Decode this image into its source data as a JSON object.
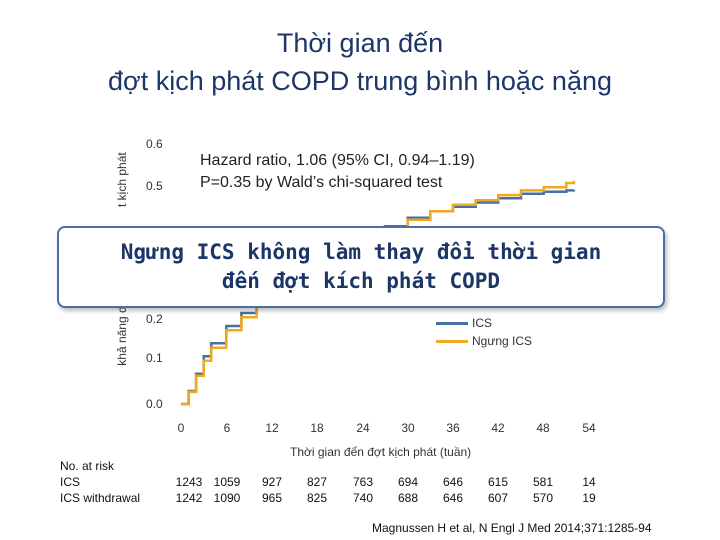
{
  "title_line1": "Thời gian đến",
  "title_line2": "đợt kịch phát COPD trung bình hoặc nặng",
  "annotation_line1": "Hazard ratio, 1.06 (95% CI, 0.94–1.19)",
  "annotation_line2": "P=0.35 by Wald’s chi-squared test",
  "overlay_line1": "Ngưng ICS không làm thay đổi thời gian",
  "overlay_line2": "đến đợt kích phát COPD",
  "citation": "Magnussen H et al, N Engl J Med 2014;371:1285-94",
  "risk_table": {
    "header": "No. at risk",
    "rows": [
      {
        "label": "ICS",
        "values": [
          "1243",
          "1059",
          "927",
          "827",
          "763",
          "694",
          "646",
          "615",
          "581",
          "14"
        ]
      },
      {
        "label": "ICS withdrawal",
        "values": [
          "1242",
          "1090",
          "965",
          "825",
          "740",
          "688",
          "646",
          "607",
          "570",
          "19"
        ]
      }
    ]
  },
  "colors": {
    "ics": "#4a6fa5",
    "withdrawal": "#f0a91c",
    "title": "#1c3668"
  },
  "chart_data": {
    "type": "line",
    "xlabel": "Thời gian đến đợt kịch phát (tuần)",
    "ylabel": "khả năng đợt kịch phát",
    "ylabel_visible_left": "khả năng dụ",
    "ylabel_visible_right": "t kịch phát",
    "xlim": [
      0,
      54
    ],
    "ylim": [
      0,
      0.6
    ],
    "x_ticks": [
      "0",
      "6",
      "12",
      "18",
      "24",
      "30",
      "36",
      "42",
      "48",
      "54"
    ],
    "y_ticks": [
      "0.0",
      "0.1",
      "0.2",
      "0.5",
      "0.6"
    ],
    "legend_position": "bottom-right",
    "series": [
      {
        "name": "ICS",
        "x": [
          0,
          1,
          2,
          3,
          4,
          6,
          8,
          10,
          12,
          15,
          18,
          21,
          24,
          27,
          30,
          33,
          36,
          39,
          42,
          45,
          48,
          51,
          52
        ],
        "y": [
          0.0,
          0.03,
          0.07,
          0.11,
          0.14,
          0.18,
          0.21,
          0.25,
          0.29,
          0.32,
          0.35,
          0.38,
          0.4,
          0.41,
          0.43,
          0.445,
          0.455,
          0.465,
          0.475,
          0.485,
          0.49,
          0.493,
          0.494
        ]
      },
      {
        "name": "Ngưng ICS",
        "x": [
          0,
          1,
          2,
          3,
          4,
          6,
          8,
          10,
          12,
          15,
          18,
          21,
          24,
          27,
          30,
          33,
          36,
          39,
          42,
          45,
          48,
          51,
          52
        ],
        "y": [
          0.0,
          0.028,
          0.065,
          0.1,
          0.13,
          0.17,
          0.2,
          0.24,
          0.28,
          0.31,
          0.34,
          0.37,
          0.39,
          0.405,
          0.425,
          0.445,
          0.46,
          0.47,
          0.482,
          0.493,
          0.5,
          0.51,
          0.515
        ]
      }
    ]
  }
}
